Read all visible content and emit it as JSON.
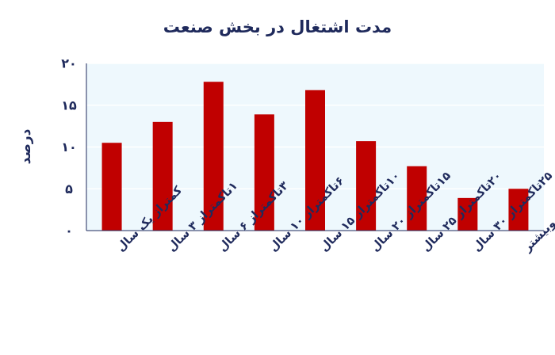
{
  "chart_data": {
    "type": "bar",
    "title": "مدت اشتغال در بخش صنعت",
    "xlabel": "",
    "ylabel": "درصد",
    "ylim": [
      0,
      20
    ],
    "yticks": [
      0,
      5,
      10,
      15,
      20
    ],
    "ytick_labels": [
      "۰",
      "۵",
      "۱۰",
      "۱۵",
      "۲۰"
    ],
    "categories": [
      "کمتراز یک سال",
      "۱تاکمتراز ۳ سال",
      "۳تاکمتراز ۶ سال",
      "۶تاکمتراز ۱۰ سال",
      "۱۰تاکمتراز ۱۵ سال",
      "۱۵تاکمتراز ۲۰ سال",
      "۲۰تاکمتراز ۲۵ سال",
      "۲۵تاکمتراز ۳۰ سال",
      "۳۰سال وبیشتر"
    ],
    "values": [
      10.5,
      13.0,
      17.8,
      13.9,
      16.8,
      10.7,
      7.7,
      3.9,
      5.0
    ],
    "grid": true,
    "legend": "none",
    "colors": {
      "bar": "#c00000",
      "plot_background": "#eef8fd",
      "grid": "#ffffff",
      "text": "#1f2a5c"
    }
  }
}
